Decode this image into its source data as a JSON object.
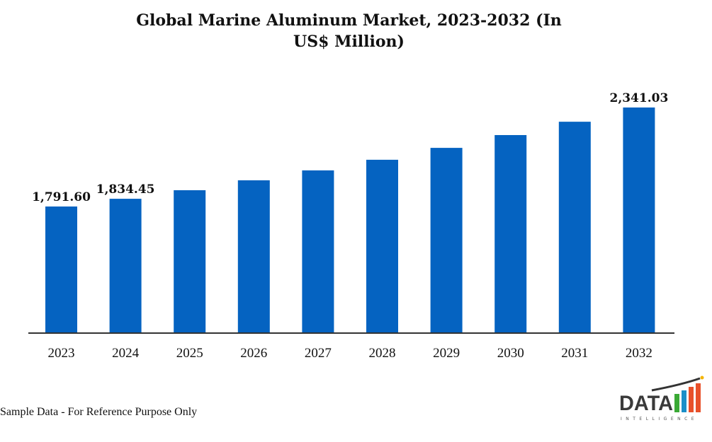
{
  "chart_data": {
    "type": "bar",
    "title_line1": "Global Marine Aluminum Market, 2023-2032 (In",
    "title_line2": "US$ Million)",
    "categories": [
      "2023",
      "2024",
      "2025",
      "2026",
      "2027",
      "2028",
      "2029",
      "2030",
      "2031",
      "2032"
    ],
    "values": [
      1791.6,
      1834.45,
      1882,
      1937,
      1992,
      2051,
      2117,
      2188,
      2262,
      2341.03
    ],
    "data_labels": [
      "1,791.60",
      "1,834.45",
      "",
      "",
      "",
      "",
      "",
      "",
      "",
      "2,341.03"
    ],
    "xlabel": "",
    "ylabel": "",
    "ylim": [
      1093,
      2400
    ],
    "grid": false,
    "bar_color": "#0563C1"
  },
  "footnote": "Sample Data - For Reference Purpose Only",
  "logo": {
    "text": "DATA",
    "subtext": "INTELLIGENCE"
  }
}
